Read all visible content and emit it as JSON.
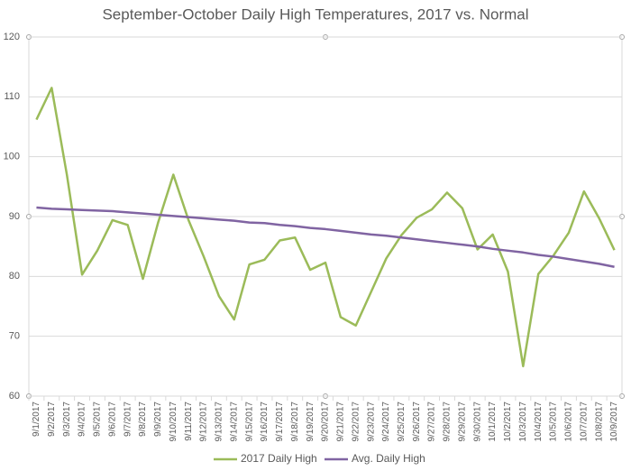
{
  "chart_data": {
    "type": "line",
    "title": "September-October Daily High Temperatures, 2017 vs. Normal",
    "categories": [
      "9/1/2017",
      "9/2/2017",
      "9/3/2017",
      "9/4/2017",
      "9/5/2017",
      "9/6/2017",
      "9/7/2017",
      "9/8/2017",
      "9/9/2017",
      "9/10/2017",
      "9/11/2017",
      "9/12/2017",
      "9/13/2017",
      "9/14/2017",
      "9/15/2017",
      "9/16/2017",
      "9/17/2017",
      "9/18/2017",
      "9/19/2017",
      "9/20/2017",
      "9/21/2017",
      "9/22/2017",
      "9/23/2017",
      "9/24/2017",
      "9/25/2017",
      "9/26/2017",
      "9/27/2017",
      "9/28/2017",
      "9/29/2017",
      "9/30/2017",
      "10/1/2017",
      "10/2/2017",
      "10/3/2017",
      "10/4/2017",
      "10/5/2017",
      "10/6/2017",
      "10/7/2017",
      "10/8/2017",
      "10/9/2017"
    ],
    "series": [
      {
        "name": "2017 Daily High",
        "color": "#9bbb59",
        "values": [
          106.2,
          111.5,
          97,
          80.3,
          84.3,
          89.4,
          88.6,
          79.6,
          89,
          97,
          89.4,
          83.3,
          76.7,
          72.8,
          82,
          82.8,
          86,
          86.5,
          81.1,
          82.3,
          73.2,
          71.8,
          77.4,
          83,
          86.9,
          89.8,
          91.2,
          94,
          91.4,
          84.5,
          87,
          80.8,
          65,
          80.4,
          83.5,
          87.3,
          94.2,
          89.7,
          84.4
        ]
      },
      {
        "name": "Avg. Daily High",
        "color": "#8064a2",
        "values": [
          91.5,
          91.3,
          91.2,
          91.1,
          91.0,
          90.9,
          90.7,
          90.5,
          90.3,
          90.1,
          89.9,
          89.7,
          89.5,
          89.3,
          89.0,
          88.9,
          88.6,
          88.4,
          88.1,
          87.9,
          87.6,
          87.3,
          87.0,
          86.8,
          86.5,
          86.2,
          85.9,
          85.6,
          85.3,
          85.0,
          84.6,
          84.3,
          84.0,
          83.6,
          83.3,
          82.9,
          82.5,
          82.1,
          81.6
        ]
      }
    ],
    "ylim": [
      60,
      120
    ],
    "yticks": [
      60,
      70,
      80,
      90,
      100,
      110,
      120
    ],
    "grid": true,
    "legend": "bottom"
  }
}
